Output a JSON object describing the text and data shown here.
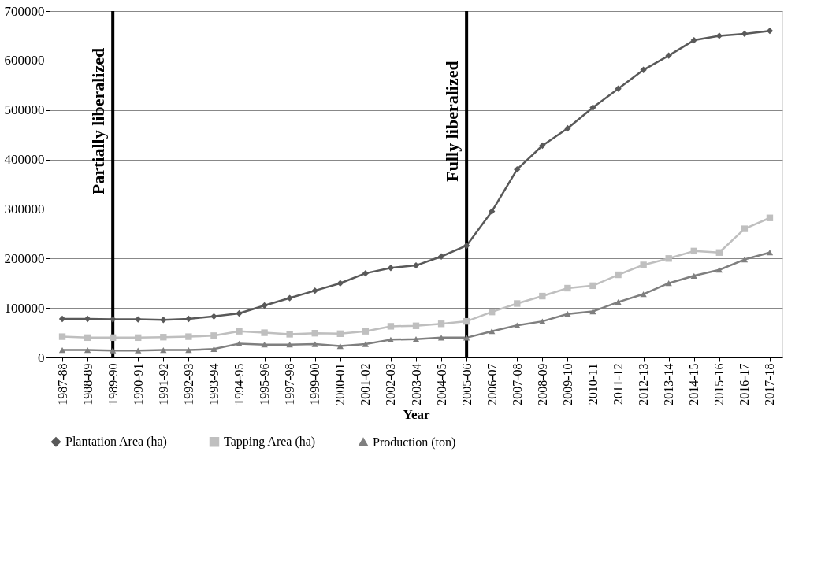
{
  "chart_data": {
    "type": "line",
    "xlabel": "Year",
    "categories": [
      "1987-88",
      "1988-89",
      "1989-90",
      "1990-91",
      "1991-92",
      "1992-93",
      "1993-94",
      "1994-95",
      "1995-96",
      "1997-98",
      "1999-00",
      "2000-01",
      "2001-02",
      "2002-03",
      "2003-04",
      "2004-05",
      "2005-06",
      "2006-07",
      "2007-08",
      "2008-09",
      "2009-10",
      "2010-11",
      "2011-12",
      "2012-13",
      "2013-14",
      "2014-15",
      "2015-16",
      "2016-17",
      "2017-18"
    ],
    "series": [
      {
        "name": "Plantation Area (ha)",
        "color": "#595959",
        "marker": "diamond",
        "values": [
          78000,
          78000,
          77000,
          77000,
          76000,
          78000,
          83000,
          89000,
          105000,
          120000,
          135000,
          150000,
          170000,
          181000,
          186000,
          204000,
          226000,
          295000,
          380000,
          428000,
          463000,
          505000,
          543000,
          581000,
          610000,
          641000,
          650000,
          654000,
          660000
        ]
      },
      {
        "name": "Tapping Area (ha)",
        "color": "#bfbfbf",
        "marker": "square",
        "values": [
          42000,
          40000,
          40000,
          40000,
          41000,
          42000,
          44000,
          53000,
          50000,
          47000,
          49000,
          48000,
          53000,
          63000,
          64000,
          68000,
          73000,
          92000,
          109000,
          124000,
          140000,
          145000,
          167000,
          187000,
          200000,
          215000,
          212000,
          260000,
          282000
        ]
      },
      {
        "name": "Production (ton)",
        "color": "#7f7f7f",
        "marker": "triangle",
        "values": [
          15000,
          15000,
          14000,
          14000,
          15000,
          15000,
          17000,
          28000,
          26000,
          26000,
          27000,
          23000,
          27000,
          36000,
          37000,
          40000,
          40000,
          53000,
          65000,
          73000,
          88000,
          93000,
          112000,
          128000,
          150000,
          165000,
          177000,
          198000,
          212000
        ]
      }
    ],
    "ylim": [
      0,
      700000
    ],
    "yticks": [
      0,
      100000,
      200000,
      300000,
      400000,
      500000,
      600000,
      700000
    ],
    "grid": "y",
    "legend": "bottom",
    "line_style": "solid",
    "ref_lines": [
      {
        "axis": "x",
        "value": "1989-90",
        "label": "Partially liberalized",
        "color": "#000000"
      },
      {
        "axis": "x",
        "value": "2005-06",
        "label": "Fully liberalized",
        "color": "#000000"
      }
    ]
  }
}
